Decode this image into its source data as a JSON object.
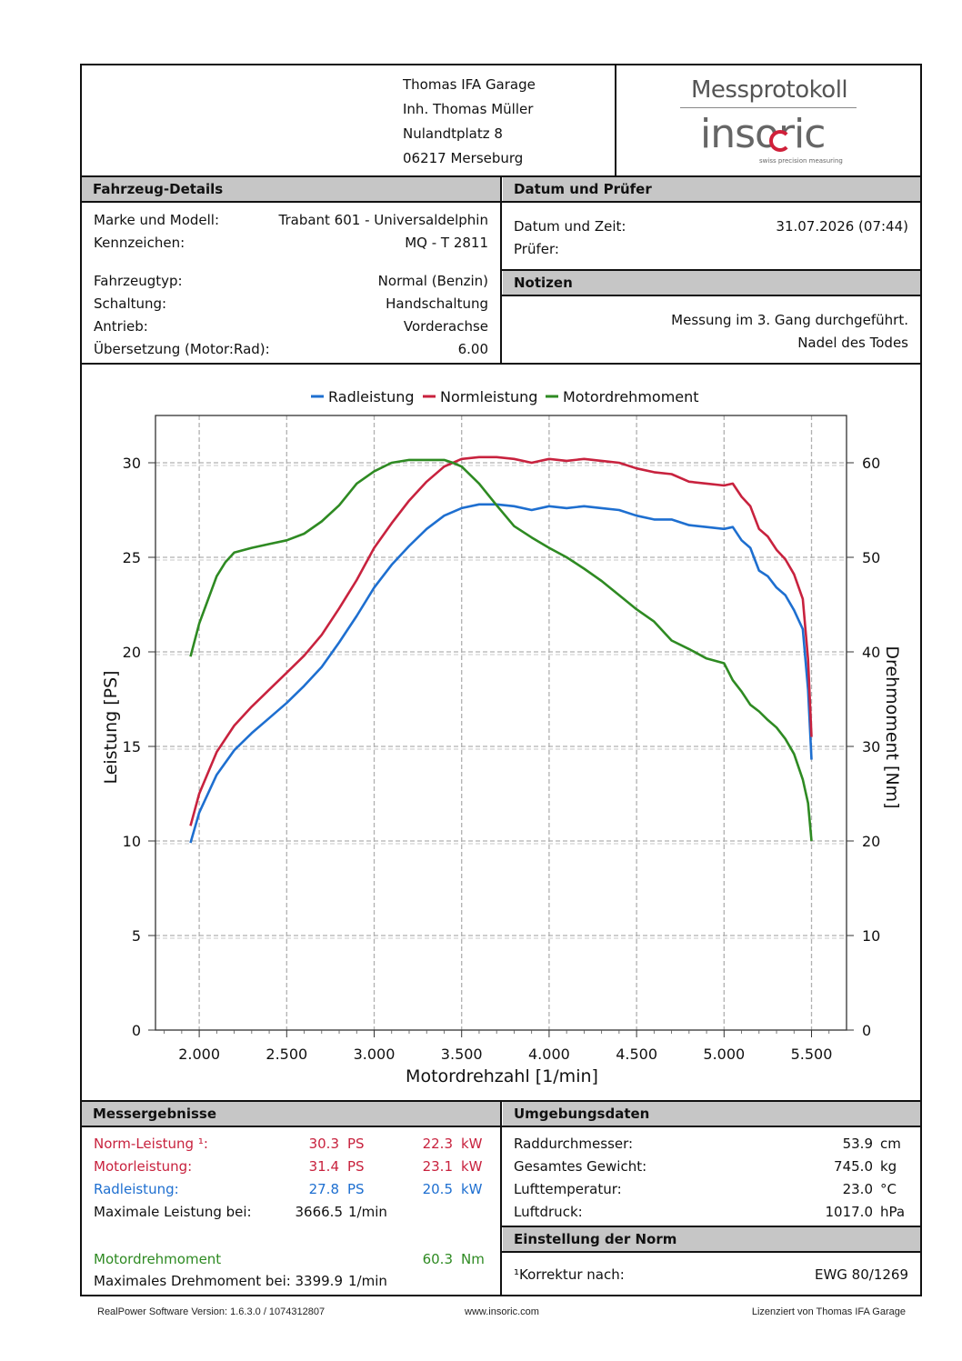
{
  "garage": {
    "line1": "Thomas IFA Garage",
    "line2": "Inh. Thomas Müller",
    "line3": "Nulandtplatz 8",
    "line4": "06217 Merseburg"
  },
  "logo": {
    "title": "Messprotokoll",
    "brand": "insoric",
    "tagline": "swiss precision measuring"
  },
  "vehicle": {
    "heading": "Fahrzeug-Details",
    "rows": [
      {
        "label": "Marke und Modell:",
        "value": "Trabant 601 - Universaldelphin"
      },
      {
        "label": "Kennzeichen:",
        "value": "MQ - T 2811"
      },
      {
        "label": "Fahrzeugtyp:",
        "value": "Normal (Benzin)"
      },
      {
        "label": "Schaltung:",
        "value": "Handschaltung"
      },
      {
        "label": "Antrieb:",
        "value": "Vorderachse"
      },
      {
        "label": "Übersetzung (Motor:Rad):",
        "value": "6.00"
      }
    ]
  },
  "date": {
    "heading": "Datum und Prüfer",
    "datetime_label": "Datum und Zeit:",
    "datetime_value": "31.07.2026 (07:44)",
    "tester_label": "Prüfer:"
  },
  "notes": {
    "heading": "Notizen",
    "line1": "Messung im 3. Gang durchgeführt.",
    "line2": "Nadel des Todes"
  },
  "chart_data": {
    "type": "line",
    "xlabel": "Motordrehzahl [1/min]",
    "ylabel": "Leistung [PS]",
    "y2label": "Drehmoment [Nm]",
    "xlim": [
      1750,
      5700
    ],
    "ylim": [
      0,
      32.5
    ],
    "y2lim": [
      0,
      65
    ],
    "xticks": [
      2000,
      2500,
      3000,
      3500,
      4000,
      4500,
      5000,
      5500
    ],
    "xtick_labels": [
      "2.000",
      "2.500",
      "3.000",
      "3.500",
      "4.000",
      "4.500",
      "5.000",
      "5.500"
    ],
    "yticks": [
      0,
      5,
      10,
      15,
      20,
      25,
      30
    ],
    "y2ticks": [
      0,
      10,
      20,
      30,
      40,
      50,
      60
    ],
    "grid": true,
    "legend_position": "top-center",
    "series": [
      {
        "name": "Radleistung",
        "axis": "left",
        "color": "#1e6fd0",
        "x": [
          1950,
          2000,
          2100,
          2200,
          2300,
          2400,
          2500,
          2600,
          2700,
          2800,
          2900,
          3000,
          3100,
          3200,
          3300,
          3400,
          3500,
          3600,
          3666,
          3700,
          3800,
          3900,
          4000,
          4100,
          4200,
          4300,
          4400,
          4500,
          4600,
          4700,
          4800,
          4900,
          5000,
          5050,
          5100,
          5150,
          5200,
          5250,
          5300,
          5350,
          5400,
          5450,
          5480,
          5500
        ],
        "y": [
          9.9,
          11.5,
          13.5,
          14.8,
          15.7,
          16.5,
          17.3,
          18.2,
          19.2,
          20.5,
          21.9,
          23.4,
          24.6,
          25.6,
          26.5,
          27.2,
          27.6,
          27.8,
          27.8,
          27.8,
          27.7,
          27.5,
          27.7,
          27.6,
          27.7,
          27.6,
          27.5,
          27.2,
          27.0,
          27.0,
          26.7,
          26.6,
          26.5,
          26.6,
          25.9,
          25.5,
          24.3,
          24.0,
          23.4,
          23.0,
          22.2,
          21.2,
          18.0,
          14.3
        ]
      },
      {
        "name": "Normleistung",
        "axis": "left",
        "color": "#c8223e",
        "x": [
          1950,
          2000,
          2100,
          2200,
          2300,
          2400,
          2500,
          2600,
          2700,
          2800,
          2900,
          3000,
          3100,
          3200,
          3300,
          3400,
          3500,
          3600,
          3666,
          3700,
          3800,
          3900,
          4000,
          4100,
          4200,
          4300,
          4400,
          4500,
          4600,
          4700,
          4800,
          4900,
          5000,
          5050,
          5100,
          5150,
          5200,
          5250,
          5300,
          5350,
          5400,
          5450,
          5480,
          5500
        ],
        "y": [
          10.8,
          12.5,
          14.7,
          16.1,
          17.1,
          18.0,
          18.9,
          19.8,
          20.9,
          22.3,
          23.8,
          25.5,
          26.8,
          28.0,
          29.0,
          29.8,
          30.2,
          30.3,
          30.3,
          30.3,
          30.2,
          30.0,
          30.2,
          30.1,
          30.2,
          30.1,
          30.0,
          29.7,
          29.5,
          29.4,
          29.0,
          28.9,
          28.8,
          28.9,
          28.2,
          27.7,
          26.5,
          26.1,
          25.4,
          24.9,
          24.1,
          22.8,
          19.6,
          15.5
        ]
      },
      {
        "name": "Motordrehmoment",
        "axis": "right",
        "color": "#2e8a22",
        "x": [
          1950,
          2000,
          2100,
          2150,
          2200,
          2300,
          2400,
          2500,
          2600,
          2700,
          2800,
          2900,
          3000,
          3100,
          3200,
          3300,
          3400,
          3450,
          3500,
          3600,
          3700,
          3800,
          3900,
          4000,
          4100,
          4200,
          4300,
          4400,
          4500,
          4600,
          4700,
          4800,
          4900,
          5000,
          5050,
          5100,
          5150,
          5200,
          5250,
          5300,
          5350,
          5400,
          5450,
          5480,
          5500
        ],
        "y": [
          39.5,
          43,
          48,
          49.5,
          50.5,
          51.0,
          51.4,
          51.8,
          52.5,
          53.8,
          55.5,
          57.8,
          59.1,
          60.0,
          60.3,
          60.3,
          60.3,
          60.0,
          59.6,
          57.8,
          55.5,
          53.3,
          52.1,
          51.0,
          50.0,
          48.8,
          47.5,
          46.0,
          44.5,
          43.2,
          41.2,
          40.3,
          39.3,
          38.8,
          37.0,
          35.8,
          34.4,
          33.7,
          32.8,
          32.0,
          30.8,
          29.2,
          26.5,
          24.0,
          20.0
        ]
      }
    ]
  },
  "results": {
    "heading": "Messergebnisse",
    "norm_label": "Norm-Leistung ¹:",
    "norm_ps": "30.3",
    "norm_kw": "22.3",
    "motor_label": "Motorleistung:",
    "motor_ps": "31.4",
    "motor_kw": "23.1",
    "rad_label": "Radleistung:",
    "rad_ps": "27.8",
    "rad_kw": "20.5",
    "ps_unit": "PS",
    "kw_unit": "kW",
    "maxp_label": "Maximale Leistung bei:",
    "maxp_value": "3666.5",
    "rpm_unit": "1/min",
    "torque_label": "Motordrehmoment",
    "torque_value": "60.3",
    "torque_unit": "Nm",
    "maxt_label": "Maximales Drehmoment bei:",
    "maxt_value": "3399.9"
  },
  "environment": {
    "heading": "Umgebungsdaten",
    "rows": [
      {
        "label": "Raddurchmesser:",
        "value": "53.9",
        "unit": "cm"
      },
      {
        "label": "Gesamtes Gewicht:",
        "value": "745.0",
        "unit": "kg"
      },
      {
        "label": "Lufttemperatur:",
        "value": "23.0",
        "unit": "°C"
      },
      {
        "label": "Luftdruck:",
        "value": "1017.0",
        "unit": "hPa"
      }
    ]
  },
  "norm": {
    "heading": "Einstellung der Norm",
    "label": "¹Korrektur nach:",
    "value": "EWG 80/1269"
  },
  "footer": {
    "left": "RealPower Software Version: 1.6.3.0 / 1074312807",
    "center": "www.insoric.com",
    "right": "Lizenziert von Thomas IFA Garage"
  }
}
